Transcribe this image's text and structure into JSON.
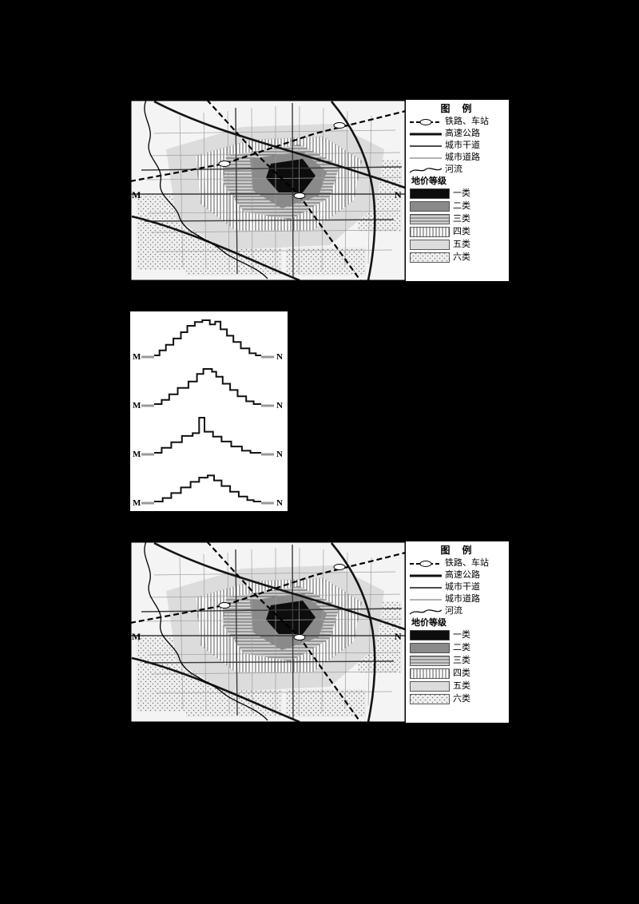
{
  "legend": {
    "title": "图  例",
    "lines": [
      {
        "name": "railway-station",
        "label": "铁路、车站"
      },
      {
        "name": "expressway",
        "label": "高速公路"
      },
      {
        "name": "arterial-road",
        "label": "城市干道"
      },
      {
        "name": "city-road",
        "label": "城市道路"
      },
      {
        "name": "river",
        "label": "河流"
      }
    ],
    "grade_title": "地价等级",
    "grades": [
      {
        "label": "一类",
        "style": "solid-black"
      },
      {
        "label": "二类",
        "style": "solid-dark-gray"
      },
      {
        "label": "三类",
        "style": "horizontal-hatch"
      },
      {
        "label": "四类",
        "style": "vertical-hatch"
      },
      {
        "label": "五类",
        "style": "solid-light-gray"
      },
      {
        "label": "六类",
        "style": "dotted-hatch"
      }
    ]
  },
  "map": {
    "left_label": "M",
    "right_label": "N"
  },
  "profiles": {
    "items": [
      {
        "left": "M",
        "right": "N",
        "points": [
          [
            0,
            0
          ],
          [
            5,
            0
          ],
          [
            5,
            14
          ],
          [
            11,
            14
          ],
          [
            11,
            30
          ],
          [
            18,
            30
          ],
          [
            18,
            48
          ],
          [
            25,
            48
          ],
          [
            25,
            66
          ],
          [
            31,
            66
          ],
          [
            31,
            84
          ],
          [
            38,
            84
          ],
          [
            38,
            95
          ],
          [
            45,
            95
          ],
          [
            45,
            100
          ],
          [
            52,
            100
          ],
          [
            52,
            88
          ],
          [
            57,
            88
          ],
          [
            57,
            96
          ],
          [
            62,
            96
          ],
          [
            62,
            74
          ],
          [
            68,
            74
          ],
          [
            68,
            56
          ],
          [
            74,
            56
          ],
          [
            74,
            38
          ],
          [
            81,
            38
          ],
          [
            81,
            20
          ],
          [
            89,
            20
          ],
          [
            89,
            6
          ],
          [
            95,
            6
          ],
          [
            95,
            0
          ],
          [
            100,
            0
          ]
        ]
      },
      {
        "left": "M",
        "right": "N",
        "points": [
          [
            0,
            0
          ],
          [
            7,
            0
          ],
          [
            7,
            12
          ],
          [
            14,
            12
          ],
          [
            14,
            28
          ],
          [
            22,
            28
          ],
          [
            22,
            46
          ],
          [
            32,
            46
          ],
          [
            32,
            64
          ],
          [
            40,
            64
          ],
          [
            40,
            86
          ],
          [
            46,
            86
          ],
          [
            46,
            100
          ],
          [
            54,
            100
          ],
          [
            54,
            92
          ],
          [
            58,
            92
          ],
          [
            58,
            78
          ],
          [
            64,
            78
          ],
          [
            64,
            58
          ],
          [
            71,
            58
          ],
          [
            71,
            40
          ],
          [
            78,
            40
          ],
          [
            78,
            22
          ],
          [
            86,
            22
          ],
          [
            86,
            8
          ],
          [
            93,
            8
          ],
          [
            93,
            0
          ],
          [
            100,
            0
          ]
        ]
      },
      {
        "left": "M",
        "right": "N",
        "points": [
          [
            0,
            0
          ],
          [
            7,
            0
          ],
          [
            7,
            14
          ],
          [
            16,
            14
          ],
          [
            16,
            30
          ],
          [
            26,
            30
          ],
          [
            26,
            48
          ],
          [
            36,
            48
          ],
          [
            36,
            56
          ],
          [
            42,
            56
          ],
          [
            42,
            100
          ],
          [
            47,
            100
          ],
          [
            47,
            60
          ],
          [
            55,
            60
          ],
          [
            55,
            46
          ],
          [
            63,
            46
          ],
          [
            63,
            32
          ],
          [
            72,
            32
          ],
          [
            72,
            18
          ],
          [
            82,
            18
          ],
          [
            82,
            6
          ],
          [
            90,
            6
          ],
          [
            90,
            0
          ],
          [
            100,
            0
          ]
        ]
      },
      {
        "left": "M",
        "right": "N",
        "points": [
          [
            0,
            0
          ],
          [
            8,
            0
          ],
          [
            8,
            10
          ],
          [
            16,
            10
          ],
          [
            16,
            24
          ],
          [
            25,
            24
          ],
          [
            25,
            40
          ],
          [
            34,
            40
          ],
          [
            34,
            56
          ],
          [
            42,
            56
          ],
          [
            42,
            68
          ],
          [
            50,
            68
          ],
          [
            50,
            74
          ],
          [
            56,
            74
          ],
          [
            56,
            60
          ],
          [
            63,
            60
          ],
          [
            63,
            44
          ],
          [
            71,
            44
          ],
          [
            71,
            28
          ],
          [
            79,
            28
          ],
          [
            79,
            14
          ],
          [
            87,
            14
          ],
          [
            87,
            4
          ],
          [
            93,
            4
          ],
          [
            93,
            0
          ],
          [
            100,
            0
          ]
        ]
      }
    ]
  }
}
